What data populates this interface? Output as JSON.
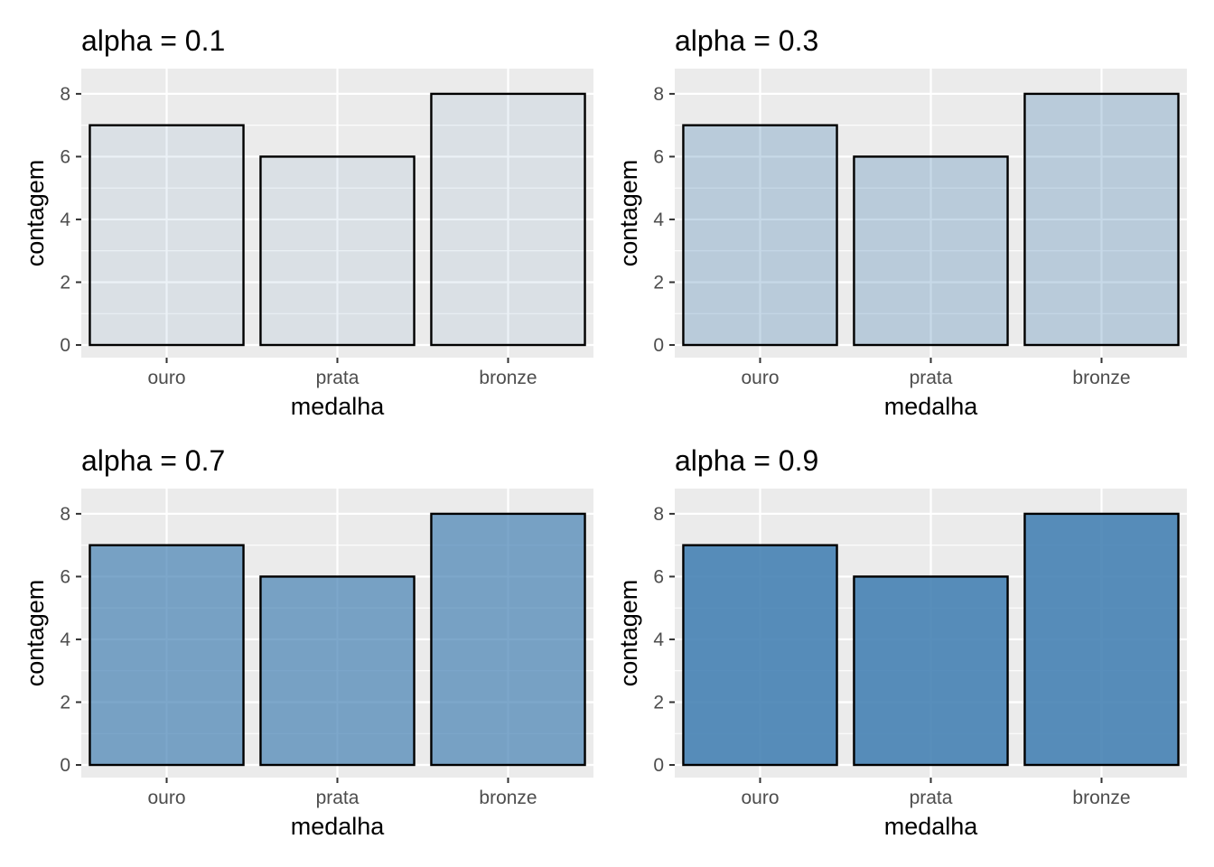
{
  "chart_data": [
    {
      "type": "bar",
      "title": "alpha = 0.1",
      "xlabel": "medalha",
      "ylabel": "contagem",
      "categories": [
        "ouro",
        "prata",
        "bronze"
      ],
      "values": [
        7,
        6,
        8
      ],
      "yticks": [
        0,
        2,
        4,
        6,
        8
      ],
      "ylim": [
        0,
        8.4
      ],
      "alpha": 0.1,
      "fill_color": "#4682b4",
      "outline_color": "#000000",
      "panel_background": "#ebebeb",
      "grid": true
    },
    {
      "type": "bar",
      "title": "alpha = 0.3",
      "xlabel": "medalha",
      "ylabel": "contagem",
      "categories": [
        "ouro",
        "prata",
        "bronze"
      ],
      "values": [
        7,
        6,
        8
      ],
      "yticks": [
        0,
        2,
        4,
        6,
        8
      ],
      "ylim": [
        0,
        8.4
      ],
      "alpha": 0.3,
      "fill_color": "#4682b4",
      "outline_color": "#000000",
      "panel_background": "#ebebeb",
      "grid": true
    },
    {
      "type": "bar",
      "title": "alpha = 0.7",
      "xlabel": "medalha",
      "ylabel": "contagem",
      "categories": [
        "ouro",
        "prata",
        "bronze"
      ],
      "values": [
        7,
        6,
        8
      ],
      "yticks": [
        0,
        2,
        4,
        6,
        8
      ],
      "ylim": [
        0,
        8.4
      ],
      "alpha": 0.7,
      "fill_color": "#4682b4",
      "outline_color": "#000000",
      "panel_background": "#ebebeb",
      "grid": true
    },
    {
      "type": "bar",
      "title": "alpha = 0.9",
      "xlabel": "medalha",
      "ylabel": "contagem",
      "categories": [
        "ouro",
        "prata",
        "bronze"
      ],
      "values": [
        7,
        6,
        8
      ],
      "yticks": [
        0,
        2,
        4,
        6,
        8
      ],
      "ylim": [
        0,
        8.4
      ],
      "alpha": 0.9,
      "fill_color": "#4682b4",
      "outline_color": "#000000",
      "panel_background": "#ebebeb",
      "grid": true
    }
  ]
}
